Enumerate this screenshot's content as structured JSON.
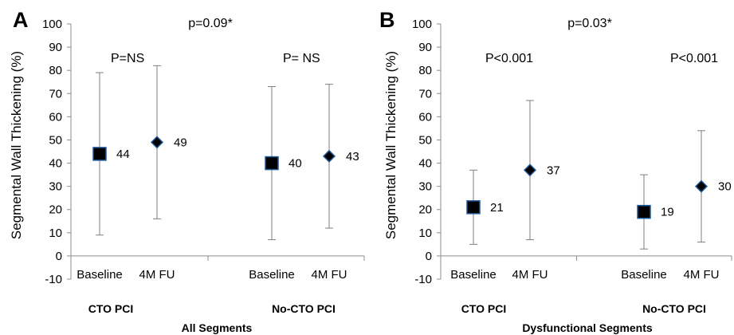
{
  "chart_data": [
    {
      "type": "scatter",
      "panel_label": "A",
      "title": "p=0.09*",
      "xlabel": "All Segments",
      "ylabel": "Segmental Wall Thickening  (%)",
      "ylim": [
        -10,
        100
      ],
      "yticks": [
        -10,
        0,
        10,
        20,
        30,
        40,
        50,
        60,
        70,
        80,
        90,
        100
      ],
      "groups": [
        {
          "name": "CTO PCI",
          "p_label": "P=NS",
          "points": [
            {
              "category": "Baseline",
              "value": 44,
              "low": 9,
              "high": 79,
              "marker": "square",
              "label": "44"
            },
            {
              "category": "4M FU",
              "value": 49,
              "low": 16,
              "high": 82,
              "marker": "diamond",
              "label": "49"
            }
          ]
        },
        {
          "name": "No-CTO PCI",
          "p_label": "P= NS",
          "points": [
            {
              "category": "Baseline",
              "value": 40,
              "low": 7,
              "high": 73,
              "marker": "square",
              "label": "40"
            },
            {
              "category": "4M FU",
              "value": 43,
              "low": 12,
              "high": 74,
              "marker": "diamond",
              "label": "43"
            }
          ]
        }
      ]
    },
    {
      "type": "scatter",
      "panel_label": "B",
      "title": "p=0.03*",
      "xlabel": "Dysfunctional Segments",
      "ylabel": "Segmental Wall Thickening  (%)",
      "ylim": [
        -10,
        100
      ],
      "yticks": [
        -10,
        0,
        10,
        20,
        30,
        40,
        50,
        60,
        70,
        80,
        90,
        100
      ],
      "groups": [
        {
          "name": "CTO PCI",
          "p_label": "P<0.001",
          "points": [
            {
              "category": "Baseline",
              "value": 21,
              "low": 5,
              "high": 37,
              "marker": "square",
              "label": "21"
            },
            {
              "category": "4M FU",
              "value": 37,
              "low": 7,
              "high": 67,
              "marker": "diamond",
              "label": "37"
            }
          ]
        },
        {
          "name": "No-CTO PCI",
          "p_label": "P<0.001",
          "points": [
            {
              "category": "Baseline",
              "value": 19,
              "low": 3,
              "high": 35,
              "marker": "square",
              "label": "19"
            },
            {
              "category": "4M FU",
              "value": 30,
              "low": 6,
              "high": 54,
              "marker": "diamond",
              "label": "30"
            }
          ]
        }
      ]
    }
  ],
  "colors": {
    "marker_fill": "#000000",
    "marker_stroke": "#1f5a9a",
    "errorbar": "#7f7f7f",
    "axis": "#8c8c8c"
  }
}
